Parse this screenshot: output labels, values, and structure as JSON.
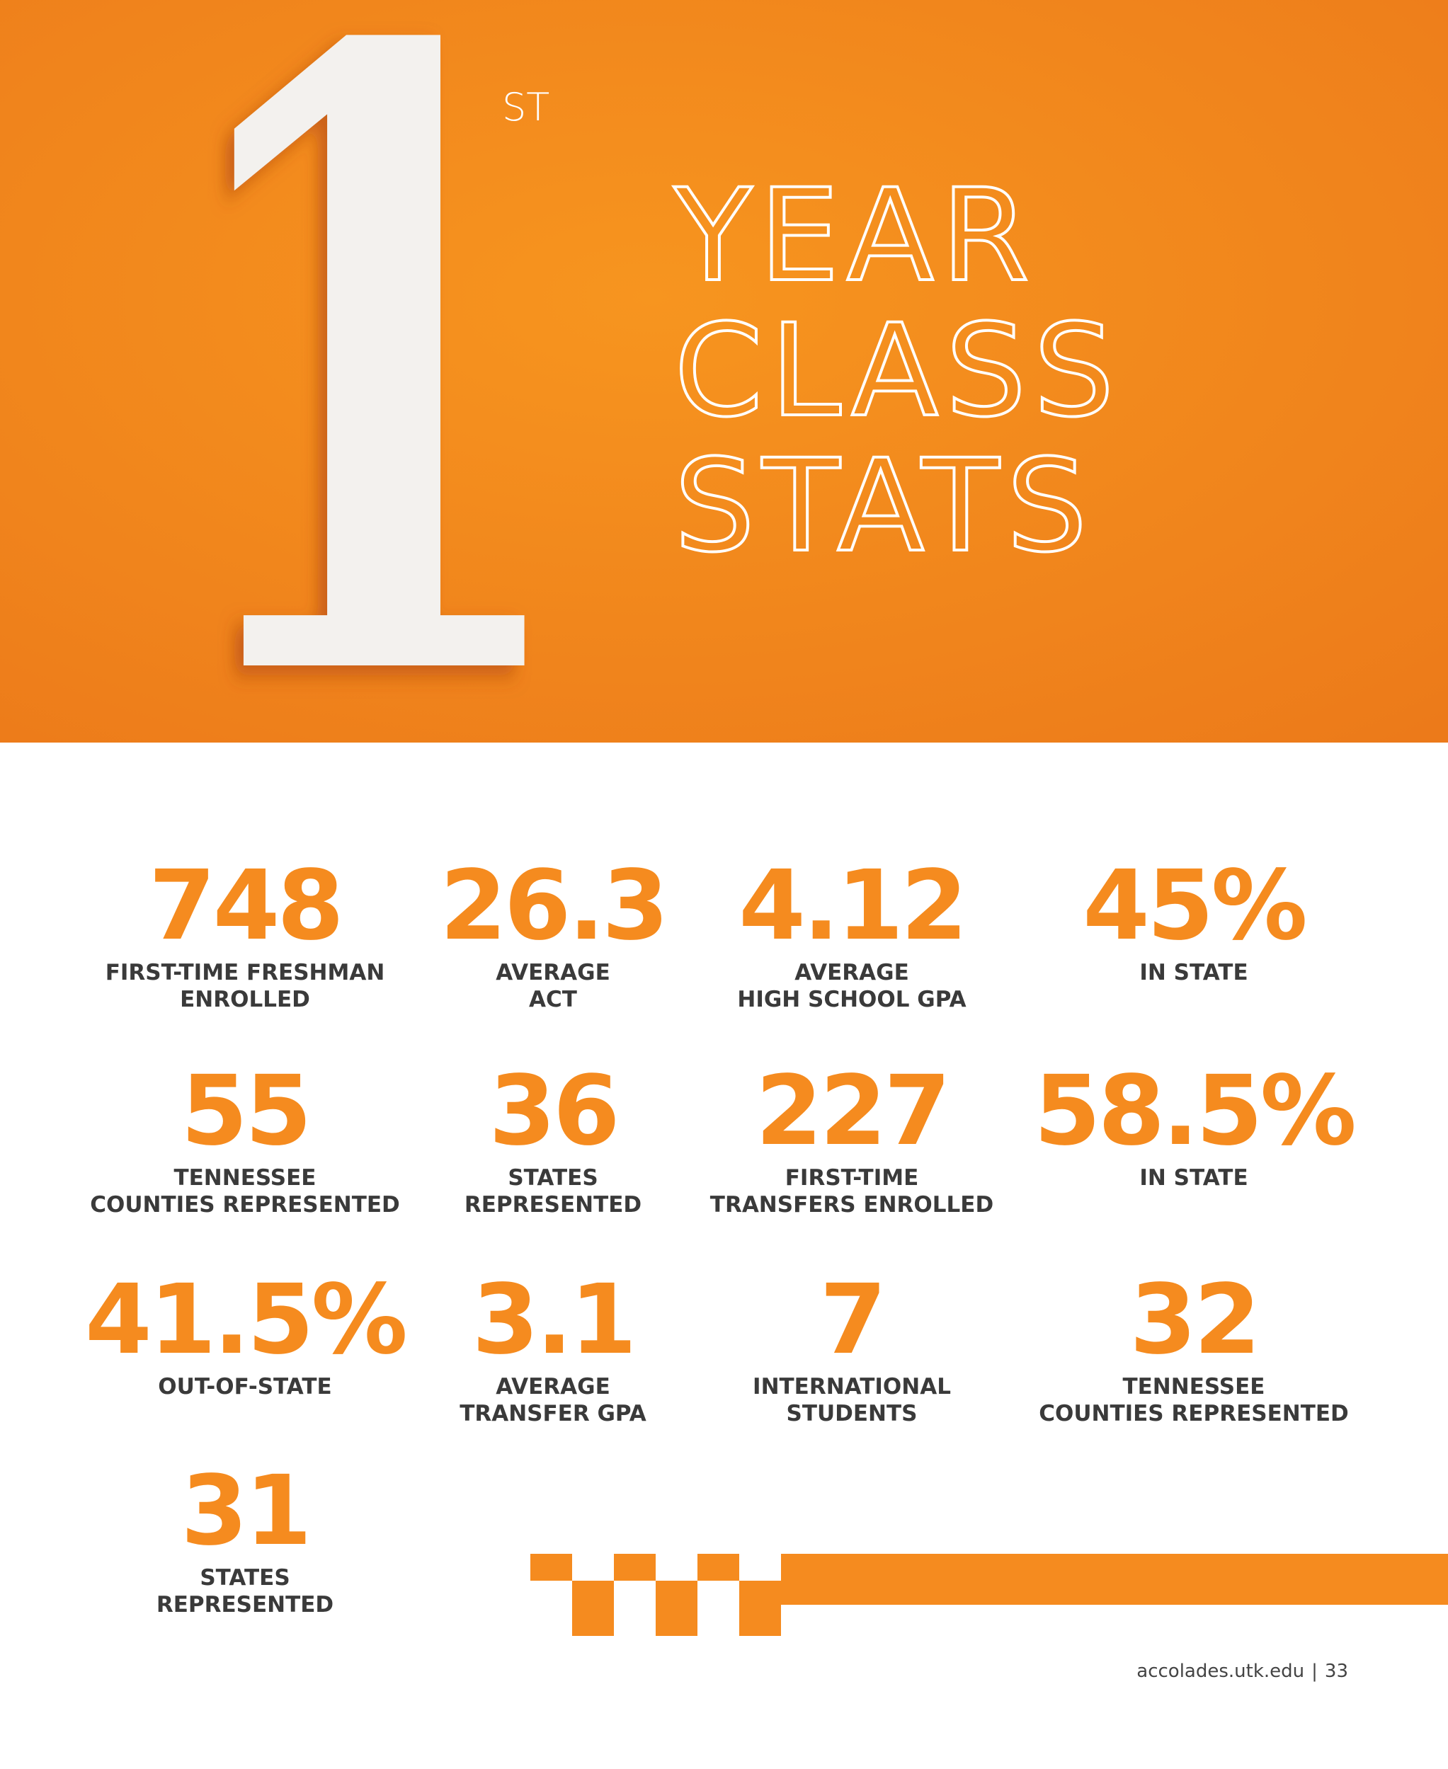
{
  "header": {
    "numeral": "1",
    "suffix": "ST",
    "title_lines": [
      "YEAR",
      "CLASS",
      "STATS"
    ]
  },
  "stats": [
    {
      "value": "748",
      "label_lines": [
        "FIRST-TIME FRESHMAN",
        "ENROLLED"
      ]
    },
    {
      "value": "26.3",
      "label_lines": [
        "AVERAGE",
        "ACT"
      ]
    },
    {
      "value": "4.12",
      "label_lines": [
        "AVERAGE",
        "HIGH SCHOOL GPA"
      ]
    },
    {
      "value": "45%",
      "label_lines": [
        "IN STATE"
      ]
    },
    {
      "value": "55",
      "label_lines": [
        "TENNESSEE",
        "COUNTIES REPRESENTED"
      ]
    },
    {
      "value": "36",
      "label_lines": [
        "STATES",
        "REPRESENTED"
      ]
    },
    {
      "value": "227",
      "label_lines": [
        "FIRST-TIME",
        "TRANSFERS ENROLLED"
      ]
    },
    {
      "value": "58.5%",
      "label_lines": [
        "IN STATE"
      ]
    },
    {
      "value": "41.5%",
      "label_lines": [
        "OUT-OF-STATE"
      ]
    },
    {
      "value": "3.1",
      "label_lines": [
        "AVERAGE",
        "TRANSFER GPA"
      ]
    },
    {
      "value": "7",
      "label_lines": [
        "INTERNATIONAL",
        "STUDENTS"
      ]
    },
    {
      "value": "32",
      "label_lines": [
        "TENNESSEE",
        "COUNTIES REPRESENTED"
      ]
    },
    {
      "value": "31",
      "label_lines": [
        "STATES",
        "REPRESENTED"
      ]
    }
  ],
  "footer": {
    "site": "accolades.utk.edu",
    "separator": "|",
    "page": "33"
  }
}
